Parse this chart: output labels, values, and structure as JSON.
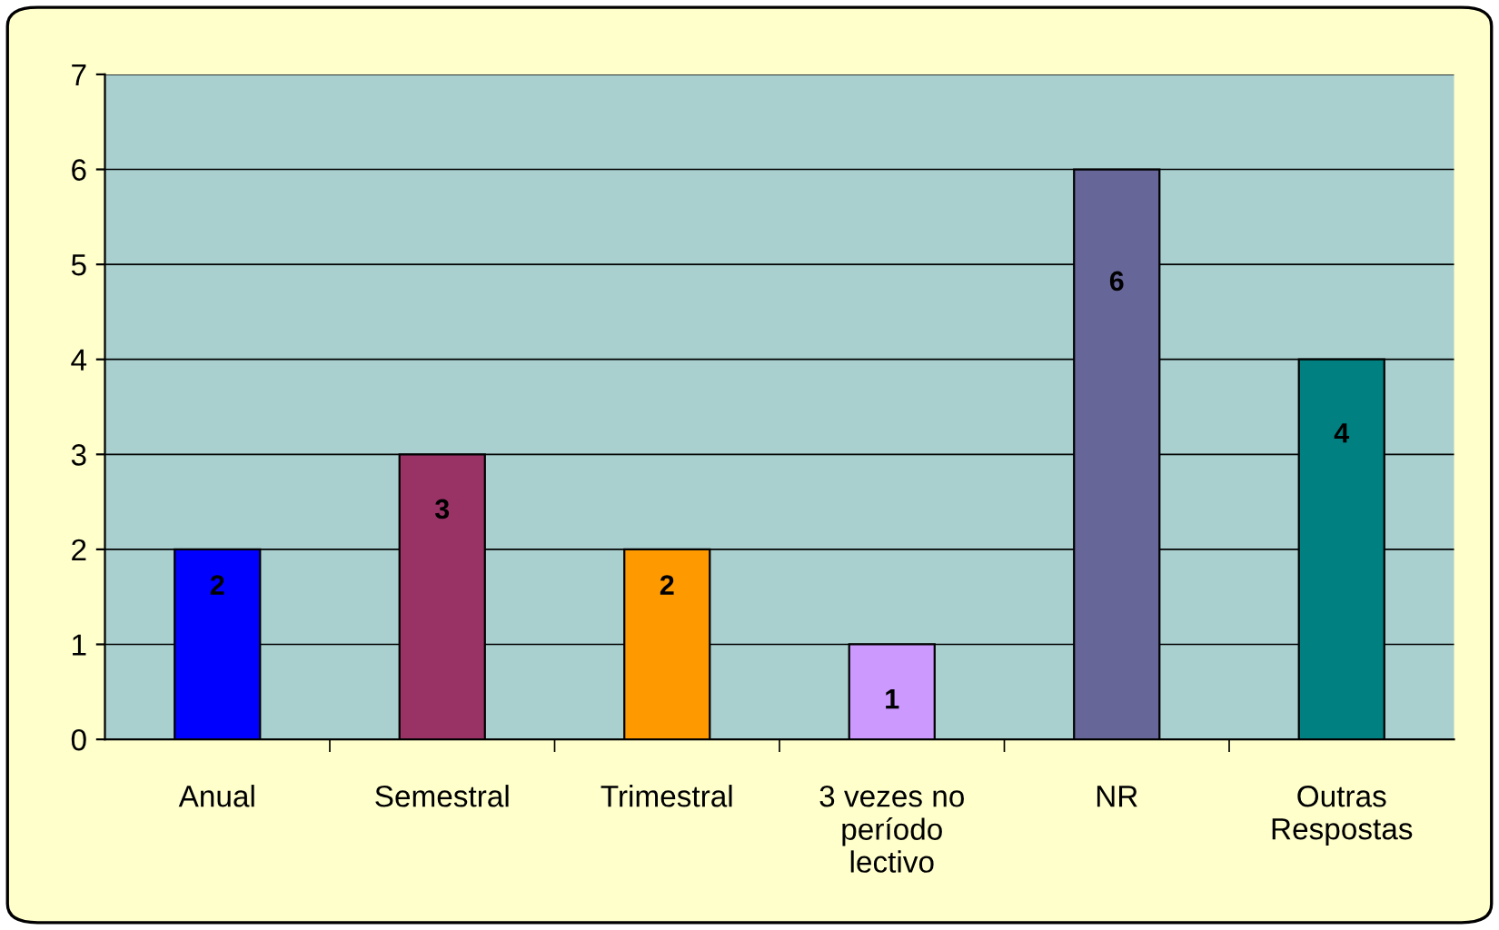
{
  "chart_data": {
    "type": "bar",
    "categories": [
      "Anual",
      "Semestral",
      "Trimestral",
      "3 vezes no\nperíodo\nlectivo",
      "NR",
      "Outras\nRespostas"
    ],
    "values": [
      2,
      3,
      2,
      1,
      6,
      4
    ],
    "colors": [
      "#0000ff",
      "#993366",
      "#ff9900",
      "#cc99ff",
      "#666699",
      "#008080"
    ],
    "ylim": [
      0,
      7
    ],
    "yticks": [
      0,
      1,
      2,
      3,
      4,
      5,
      6,
      7
    ],
    "grid": "y",
    "data_labels": true,
    "legend": false
  }
}
